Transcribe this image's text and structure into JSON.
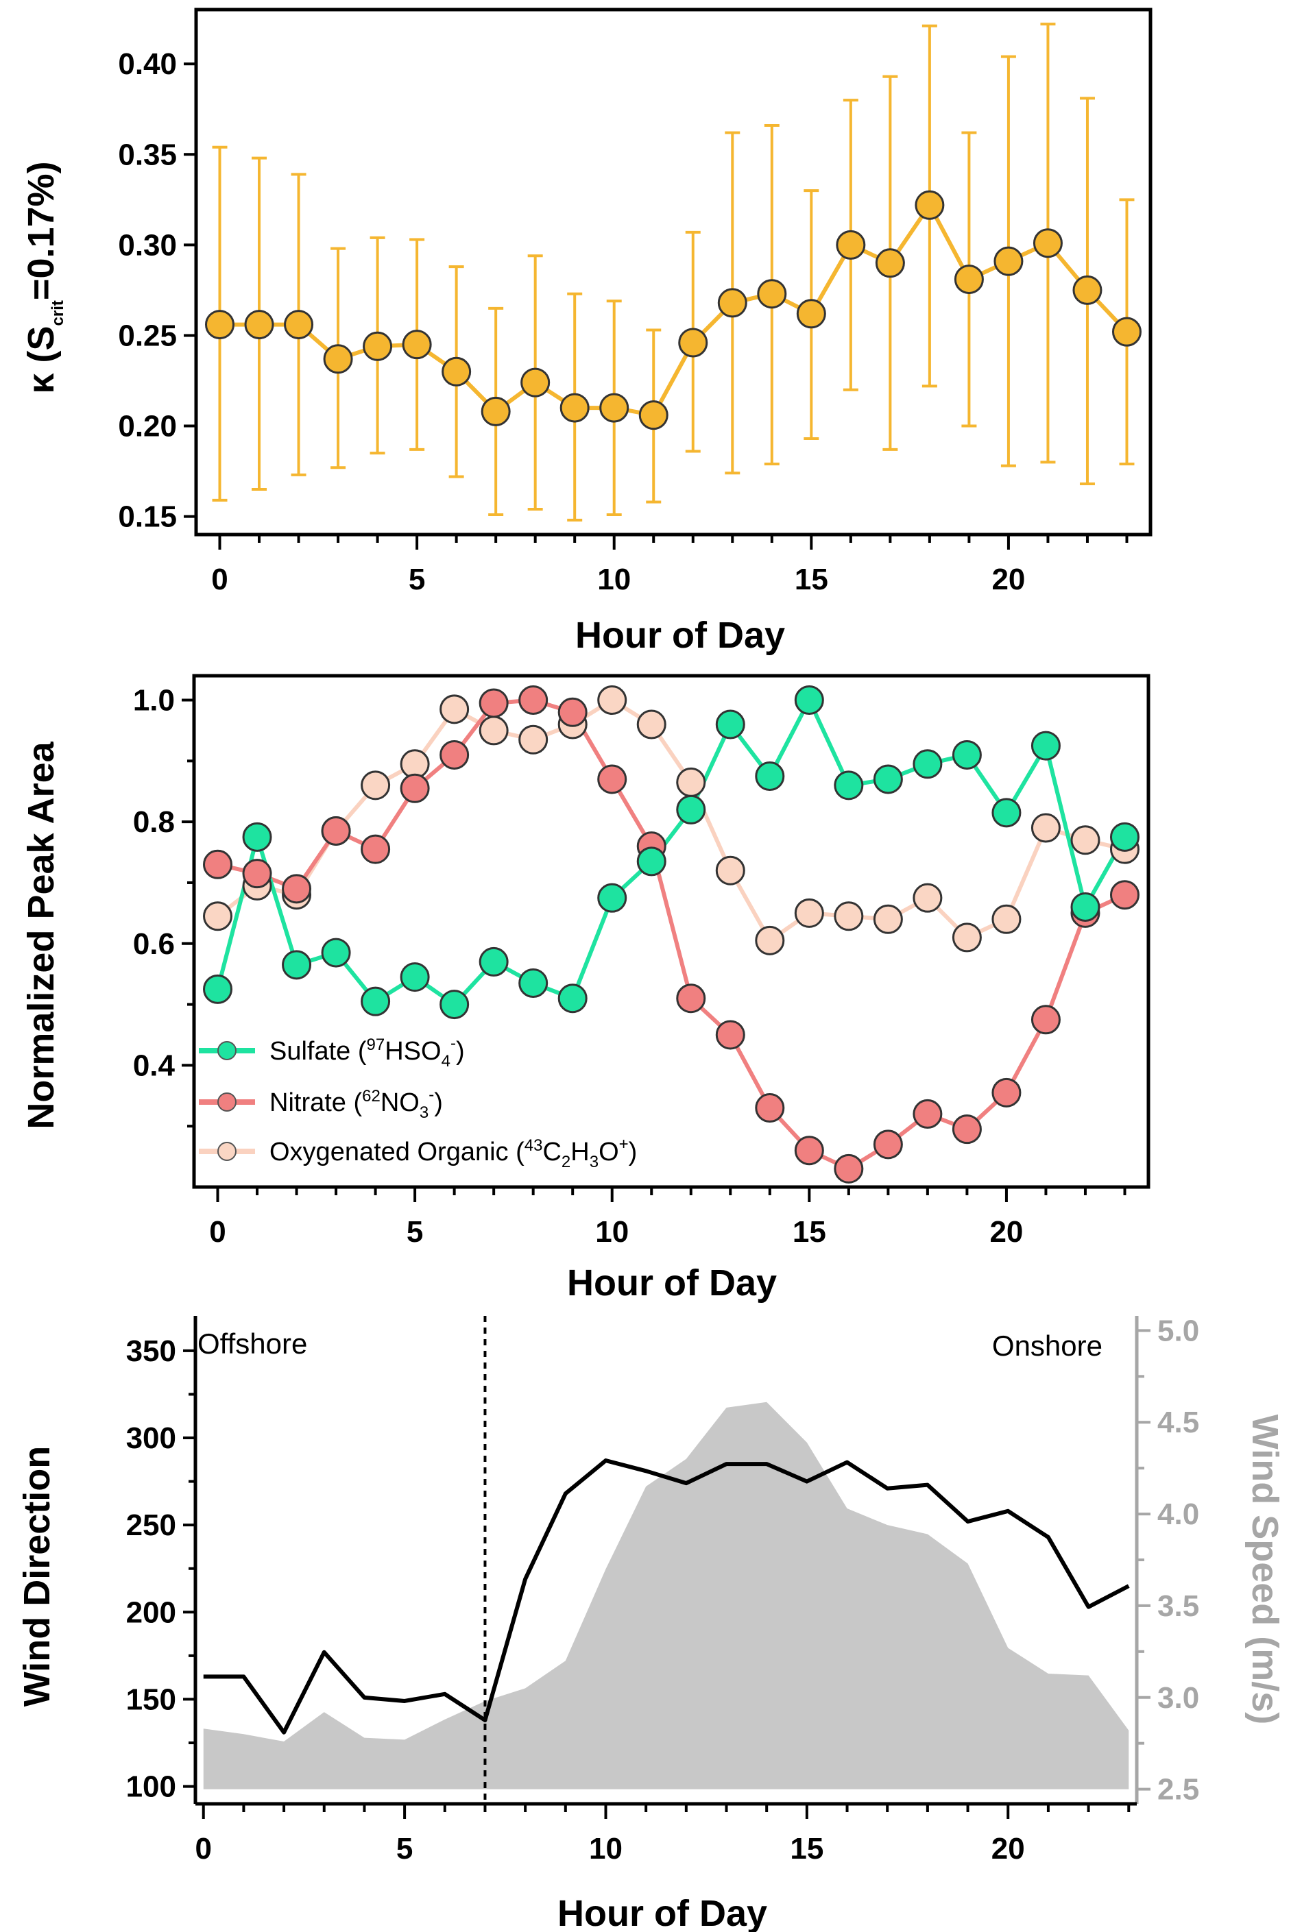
{
  "panels": {
    "kappa": {
      "ylabel_main": "κ (S",
      "ylabel_sub": "crit",
      "ylabel_end": "=0.17%)",
      "xlabel": "Hour of Day"
    },
    "peak": {
      "ylabel": "Normalized Peak Area",
      "xlabel": "Hour of Day",
      "legend": [
        {
          "pre": "Sulfate (",
          "sup": "97",
          "body": "HSO",
          "sub": "4",
          "sup2": "-",
          "post": ")"
        },
        {
          "pre": "Nitrate (",
          "sup": "62",
          "body": "NO",
          "sub": "3",
          "sup2": "-",
          "post": ")"
        },
        {
          "pre": "Oxygenated Organic (",
          "sup": "43",
          "body": "C",
          "sub": "2",
          "mid": "H",
          "sub2": "3",
          "tail": "O",
          "sup2": "+",
          "post": ")"
        }
      ]
    },
    "wind": {
      "ylabel": "Wind Direction",
      "ylabel_right": "Wind Speed (m/s)",
      "xlabel": "Hour of Day",
      "annot_left": "Offshore",
      "annot_right": "Onshore"
    }
  },
  "chart_data": [
    {
      "type": "scatter",
      "name": "kappa",
      "title": "",
      "xlabel": "Hour of Day",
      "ylabel": "κ (Scrit=0.17%)",
      "xlim": [
        -0.6,
        23.6
      ],
      "ylim": [
        0.14,
        0.43
      ],
      "xticks": [
        0,
        5,
        10,
        15,
        20
      ],
      "yticks": [
        0.15,
        0.2,
        0.25,
        0.3,
        0.35,
        0.4
      ],
      "color": "#F5B630",
      "x": [
        0,
        1,
        2,
        3,
        4,
        5,
        6,
        7,
        8,
        9,
        10,
        11,
        12,
        13,
        14,
        15,
        16,
        17,
        18,
        19,
        20,
        21,
        22,
        23
      ],
      "values": [
        0.256,
        0.256,
        0.256,
        0.237,
        0.244,
        0.245,
        0.23,
        0.208,
        0.224,
        0.21,
        0.21,
        0.206,
        0.246,
        0.268,
        0.273,
        0.262,
        0.3,
        0.29,
        0.322,
        0.281,
        0.291,
        0.301,
        0.275,
        0.252
      ],
      "err_low": [
        0.159,
        0.165,
        0.173,
        0.177,
        0.185,
        0.187,
        0.172,
        0.151,
        0.154,
        0.148,
        0.151,
        0.158,
        0.186,
        0.174,
        0.179,
        0.193,
        0.22,
        0.187,
        0.222,
        0.2,
        0.178,
        0.18,
        0.168,
        0.179
      ],
      "err_high": [
        0.354,
        0.348,
        0.339,
        0.298,
        0.304,
        0.303,
        0.288,
        0.265,
        0.294,
        0.273,
        0.269,
        0.253,
        0.307,
        0.362,
        0.366,
        0.33,
        0.38,
        0.393,
        0.421,
        0.362,
        0.404,
        0.422,
        0.381,
        0.325
      ]
    },
    {
      "type": "line",
      "name": "peak-area",
      "title": "",
      "xlabel": "Hour of Day",
      "ylabel": "Normalized Peak Area",
      "xlim": [
        -0.6,
        23.6
      ],
      "ylim": [
        0.2,
        1.04
      ],
      "xticks": [
        0,
        5,
        10,
        15,
        20
      ],
      "yticks": [
        0.4,
        0.6,
        0.8,
        1.0
      ],
      "ytick_labels": [
        "0.4",
        "0.6",
        "0.8",
        "1.0"
      ],
      "x": [
        0,
        1,
        2,
        3,
        4,
        5,
        6,
        7,
        8,
        9,
        10,
        11,
        12,
        13,
        14,
        15,
        16,
        17,
        18,
        19,
        20,
        21,
        22,
        23
      ],
      "series": [
        {
          "name": "Oxygenated Organic",
          "line": "#FAD2C0",
          "fill": "#FAD6C4",
          "values": [
            0.645,
            0.695,
            0.68,
            0.785,
            0.86,
            0.895,
            0.985,
            0.95,
            0.935,
            0.96,
            1.0,
            0.96,
            0.865,
            0.72,
            0.605,
            0.65,
            0.645,
            0.64,
            0.675,
            0.61,
            0.64,
            0.79,
            0.77,
            0.755
          ]
        },
        {
          "name": "Nitrate",
          "line": "#F08080",
          "fill": "#F08080",
          "values": [
            0.73,
            0.715,
            0.69,
            0.785,
            0.755,
            0.855,
            0.91,
            0.995,
            1.0,
            0.98,
            0.87,
            0.76,
            0.51,
            0.45,
            0.33,
            0.26,
            0.23,
            0.27,
            0.32,
            0.295,
            0.355,
            0.475,
            0.65,
            0.68
          ]
        },
        {
          "name": "Sulfate",
          "line": "#1EE3A0",
          "fill": "#1EE3A0",
          "values": [
            0.525,
            0.775,
            0.565,
            0.585,
            0.505,
            0.545,
            0.5,
            0.57,
            0.535,
            0.51,
            0.675,
            0.735,
            0.82,
            0.96,
            0.875,
            1.0,
            0.86,
            0.87,
            0.895,
            0.91,
            0.815,
            0.925,
            0.66,
            0.775
          ]
        }
      ]
    },
    {
      "type": "line",
      "name": "wind",
      "title": "",
      "xlabel": "Hour of Day",
      "ylabel": "Wind Direction",
      "ylabel_right": "Wind Speed (m/s)",
      "xlim": [
        -0.2,
        23.2
      ],
      "ylim": [
        90,
        370
      ],
      "yticks": [
        100,
        150,
        200,
        250,
        300,
        350
      ],
      "ylim_right": [
        2.42,
        5.08
      ],
      "yticks_right": [
        2.5,
        3.0,
        3.5,
        4.0,
        4.5,
        5.0
      ],
      "ytick_labels_right": [
        "2.5",
        "3.0",
        "3.5",
        "4.0",
        "4.5",
        "5.0"
      ],
      "xticks": [
        0,
        5,
        10,
        15,
        20
      ],
      "divider_x": 7,
      "speed_baseline": 2.5,
      "x": [
        0,
        1,
        2,
        3,
        4,
        5,
        6,
        7,
        8,
        9,
        10,
        11,
        12,
        13,
        14,
        15,
        16,
        17,
        18,
        19,
        20,
        21,
        22,
        23
      ],
      "series": [
        {
          "name": "Wind Speed",
          "axis": "right",
          "color": "#C8C8C8",
          "values": [
            2.83,
            2.8,
            2.76,
            2.92,
            2.78,
            2.77,
            2.88,
            2.98,
            3.05,
            3.2,
            3.7,
            4.15,
            4.3,
            4.58,
            4.61,
            4.39,
            4.03,
            3.94,
            3.89,
            3.73,
            3.27,
            3.13,
            3.12,
            2.82
          ]
        },
        {
          "name": "Wind Direction",
          "axis": "left",
          "color": "#000000",
          "values": [
            163,
            163,
            131,
            177,
            151,
            149,
            153,
            138,
            219,
            268,
            287,
            281,
            274,
            285,
            285,
            275,
            286,
            271,
            273,
            252,
            258,
            243,
            203,
            215
          ]
        }
      ]
    }
  ]
}
